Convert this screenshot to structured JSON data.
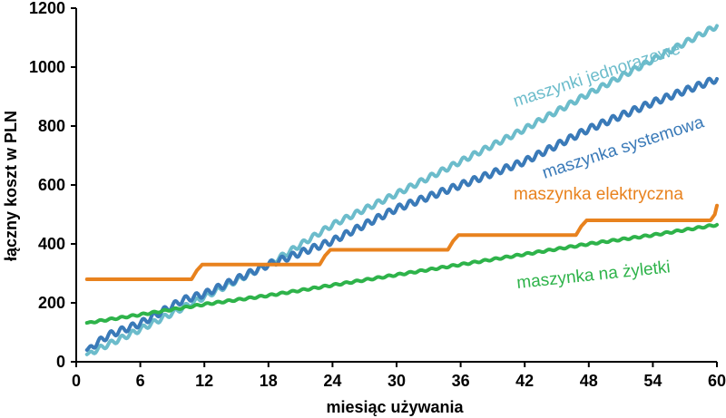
{
  "chart_data": {
    "type": "line",
    "title": "",
    "xlabel": "miesiąc używania",
    "ylabel": "łączny koszt w PLN",
    "xlim": [
      0,
      60
    ],
    "ylim": [
      0,
      1200
    ],
    "xticks": [
      0,
      6,
      12,
      18,
      24,
      30,
      36,
      42,
      48,
      54,
      60
    ],
    "yticks": [
      0,
      200,
      400,
      600,
      800,
      1000,
      1200
    ],
    "grid": false,
    "series": [
      {
        "name": "maszynki jednorazowe",
        "color": "#6cbccb",
        "points": [
          [
            1,
            25
          ],
          [
            6,
            110
          ],
          [
            12,
            220
          ],
          [
            18,
            330
          ],
          [
            24,
            465
          ],
          [
            30,
            570
          ],
          [
            36,
            680
          ],
          [
            42,
            790
          ],
          [
            48,
            910
          ],
          [
            54,
            1025
          ],
          [
            60,
            1140
          ]
        ]
      },
      {
        "name": "maszynka systemowa",
        "color": "#3a7ab8",
        "points": [
          [
            1,
            40
          ],
          [
            3,
            90
          ],
          [
            6,
            130
          ],
          [
            10,
            210
          ],
          [
            12,
            230
          ],
          [
            18,
            330
          ],
          [
            24,
            410
          ],
          [
            30,
            520
          ],
          [
            36,
            600
          ],
          [
            42,
            680
          ],
          [
            48,
            790
          ],
          [
            54,
            880
          ],
          [
            60,
            960
          ]
        ]
      },
      {
        "name": "maszynka elektryczna",
        "color": "#e8821e",
        "points": [
          [
            1,
            280
          ],
          [
            10.8,
            280
          ],
          [
            11.3,
            310
          ],
          [
            11.8,
            330
          ],
          [
            22.8,
            330
          ],
          [
            23.3,
            360
          ],
          [
            23.8,
            380
          ],
          [
            34.8,
            380
          ],
          [
            35.3,
            410
          ],
          [
            35.8,
            430
          ],
          [
            46.8,
            430
          ],
          [
            47.3,
            460
          ],
          [
            47.8,
            480
          ],
          [
            59.4,
            480
          ],
          [
            59.8,
            500
          ],
          [
            60,
            530
          ]
        ]
      },
      {
        "name": "maszynka na żyletki",
        "color": "#2eb34a",
        "points": [
          [
            1,
            132
          ],
          [
            6,
            160
          ],
          [
            12,
            195
          ],
          [
            18,
            225
          ],
          [
            24,
            260
          ],
          [
            30,
            295
          ],
          [
            36,
            330
          ],
          [
            42,
            365
          ],
          [
            48,
            400
          ],
          [
            54,
            430
          ],
          [
            60,
            465
          ]
        ]
      }
    ]
  }
}
